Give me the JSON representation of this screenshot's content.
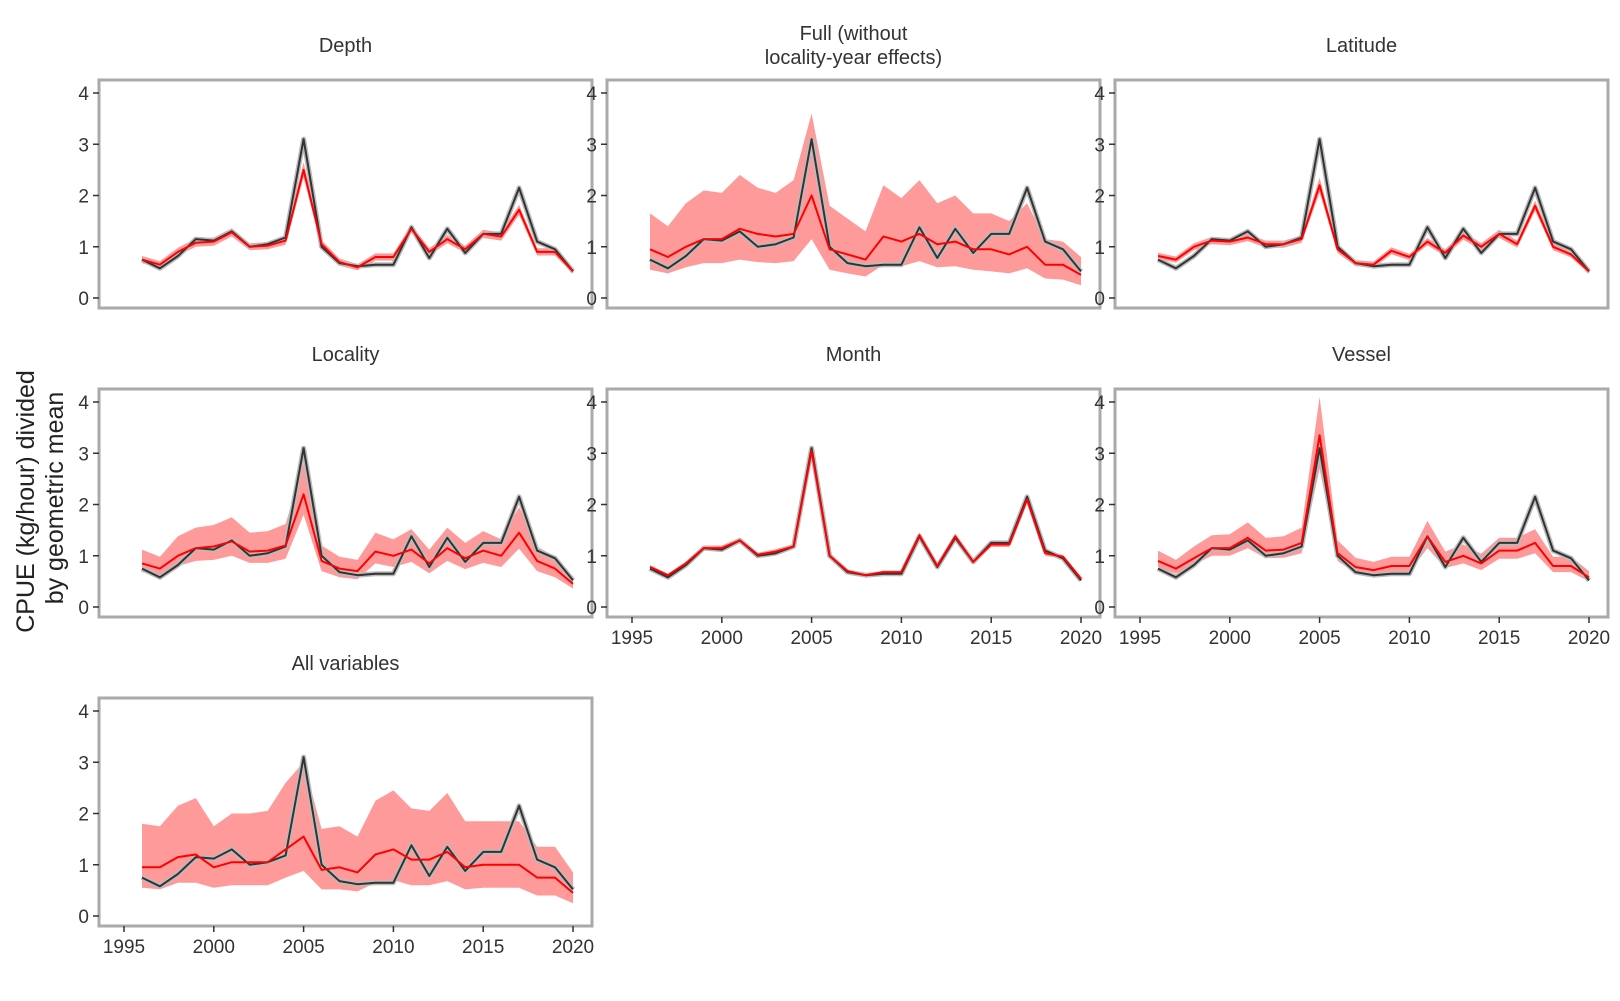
{
  "figure": {
    "ylabel_line1": "CPUE (kg/hour) divided",
    "ylabel_line2": "by geometric mean"
  },
  "colors": {
    "standardized": "#ff0000",
    "band": "#ff9a9a",
    "nominal": "#333333",
    "nominal_band": "#bbbbbb",
    "frame": "#aaaaaa"
  },
  "chart_data": {
    "type": "line",
    "x": [
      1996,
      1997,
      1998,
      1999,
      2000,
      2001,
      2002,
      2003,
      2004,
      2005,
      2006,
      2007,
      2008,
      2009,
      2010,
      2011,
      2012,
      2013,
      2014,
      2015,
      2016,
      2017,
      2018,
      2019,
      2020
    ],
    "xlim": [
      1995,
      2020
    ],
    "ylim": [
      0,
      4
    ],
    "yticks": [
      0,
      1,
      2,
      3,
      4
    ],
    "xticks": [
      1995,
      2000,
      2005,
      2010,
      2015,
      2020
    ],
    "nominal": [
      0.75,
      0.58,
      0.82,
      1.15,
      1.12,
      1.3,
      1.0,
      1.05,
      1.18,
      3.1,
      1.0,
      0.68,
      0.62,
      0.65,
      0.65,
      1.38,
      0.78,
      1.35,
      0.88,
      1.25,
      1.25,
      2.15,
      1.1,
      0.95,
      0.52
    ],
    "panels": [
      {
        "title_line1": "Depth",
        "title_line2": "",
        "xaxis": false,
        "series": [
          0.75,
          0.65,
          0.9,
          1.08,
          1.1,
          1.28,
          1.0,
          1.02,
          1.12,
          2.5,
          1.05,
          0.7,
          0.6,
          0.8,
          0.8,
          1.35,
          0.9,
          1.15,
          0.95,
          1.25,
          1.2,
          1.72,
          0.9,
          0.9,
          0.52
        ],
        "lower": [
          0.68,
          0.58,
          0.83,
          1.0,
          1.02,
          1.2,
          0.93,
          0.95,
          1.04,
          2.35,
          0.97,
          0.63,
          0.54,
          0.73,
          0.73,
          1.27,
          0.83,
          1.07,
          0.88,
          1.17,
          1.12,
          1.62,
          0.83,
          0.83,
          0.47
        ],
        "upper": [
          0.82,
          0.72,
          0.98,
          1.16,
          1.18,
          1.36,
          1.07,
          1.09,
          1.2,
          2.65,
          1.13,
          0.77,
          0.66,
          0.87,
          0.87,
          1.43,
          0.97,
          1.23,
          1.02,
          1.33,
          1.28,
          1.82,
          0.97,
          0.97,
          0.57
        ]
      },
      {
        "title_line1": "Full (without",
        "title_line2": "locality-year effects)",
        "xaxis": false,
        "series": [
          0.95,
          0.8,
          1.0,
          1.15,
          1.15,
          1.35,
          1.25,
          1.2,
          1.25,
          2.0,
          0.95,
          0.85,
          0.75,
          1.2,
          1.1,
          1.25,
          1.05,
          1.1,
          0.95,
          0.95,
          0.85,
          1.0,
          0.65,
          0.65,
          0.45
        ],
        "lower": [
          0.55,
          0.48,
          0.6,
          0.68,
          0.68,
          0.75,
          0.7,
          0.68,
          0.72,
          1.15,
          0.55,
          0.48,
          0.42,
          0.65,
          0.62,
          0.72,
          0.6,
          0.62,
          0.55,
          0.52,
          0.48,
          0.58,
          0.38,
          0.36,
          0.25
        ],
        "upper": [
          1.65,
          1.4,
          1.85,
          2.1,
          2.05,
          2.4,
          2.15,
          2.05,
          2.3,
          3.6,
          1.8,
          1.55,
          1.3,
          2.2,
          1.95,
          2.3,
          1.85,
          2.0,
          1.65,
          1.65,
          1.5,
          1.85,
          1.15,
          1.1,
          0.8
        ]
      },
      {
        "title_line1": "Latitude",
        "title_line2": "",
        "xaxis": false,
        "series": [
          0.82,
          0.75,
          1.0,
          1.12,
          1.1,
          1.18,
          1.05,
          1.05,
          1.15,
          2.2,
          0.95,
          0.68,
          0.65,
          0.92,
          0.8,
          1.1,
          0.88,
          1.22,
          1.0,
          1.25,
          1.05,
          1.8,
          1.0,
          0.85,
          0.52
        ],
        "lower": [
          0.76,
          0.69,
          0.93,
          1.05,
          1.03,
          1.11,
          0.98,
          0.98,
          1.08,
          2.05,
          0.88,
          0.62,
          0.59,
          0.85,
          0.74,
          1.03,
          0.81,
          1.14,
          0.93,
          1.17,
          0.98,
          1.7,
          0.93,
          0.79,
          0.47
        ],
        "upper": [
          0.88,
          0.81,
          1.07,
          1.19,
          1.17,
          1.25,
          1.12,
          1.12,
          1.22,
          2.35,
          1.02,
          0.74,
          0.71,
          0.99,
          0.86,
          1.17,
          0.95,
          1.3,
          1.07,
          1.33,
          1.12,
          1.9,
          1.07,
          0.91,
          0.57
        ]
      },
      {
        "title_line1": "Locality",
        "title_line2": "",
        "xaxis": false,
        "series": [
          0.85,
          0.75,
          1.0,
          1.15,
          1.18,
          1.28,
          1.08,
          1.1,
          1.2,
          2.2,
          0.9,
          0.75,
          0.7,
          1.08,
          1.0,
          1.12,
          0.85,
          1.15,
          0.95,
          1.1,
          1.0,
          1.45,
          0.9,
          0.75,
          0.45
        ],
        "lower": [
          0.68,
          0.6,
          0.8,
          0.9,
          0.92,
          1.0,
          0.86,
          0.86,
          0.94,
          1.8,
          0.7,
          0.58,
          0.54,
          0.85,
          0.78,
          0.88,
          0.66,
          0.9,
          0.74,
          0.86,
          0.78,
          1.14,
          0.7,
          0.58,
          0.36
        ],
        "upper": [
          1.12,
          0.98,
          1.38,
          1.55,
          1.6,
          1.75,
          1.45,
          1.48,
          1.62,
          2.8,
          1.2,
          0.98,
          0.92,
          1.45,
          1.32,
          1.52,
          1.12,
          1.55,
          1.25,
          1.48,
          1.32,
          1.95,
          1.18,
          0.98,
          0.6
        ]
      },
      {
        "title_line1": "Month",
        "title_line2": "",
        "xaxis": true,
        "series": [
          0.78,
          0.62,
          0.85,
          1.15,
          1.15,
          1.3,
          1.02,
          1.08,
          1.18,
          3.05,
          1.0,
          0.7,
          0.62,
          0.68,
          0.68,
          1.4,
          0.8,
          1.38,
          0.88,
          1.22,
          1.22,
          2.1,
          1.05,
          0.98,
          0.55
        ],
        "lower": [
          0.74,
          0.59,
          0.81,
          1.1,
          1.1,
          1.25,
          0.98,
          1.03,
          1.13,
          2.95,
          0.96,
          0.67,
          0.59,
          0.65,
          0.65,
          1.34,
          0.76,
          1.32,
          0.84,
          1.17,
          1.17,
          2.02,
          1.0,
          0.94,
          0.52
        ],
        "upper": [
          0.82,
          0.65,
          0.89,
          1.2,
          1.2,
          1.35,
          1.06,
          1.13,
          1.23,
          3.15,
          1.04,
          0.73,
          0.65,
          0.71,
          0.71,
          1.46,
          0.84,
          1.44,
          0.92,
          1.27,
          1.27,
          2.18,
          1.1,
          1.02,
          0.58
        ]
      },
      {
        "title_line1": "Vessel",
        "title_line2": "",
        "xaxis": true,
        "series": [
          0.9,
          0.75,
          0.95,
          1.15,
          1.15,
          1.35,
          1.1,
          1.12,
          1.25,
          3.35,
          1.05,
          0.78,
          0.72,
          0.8,
          0.8,
          1.38,
          0.88,
          1.0,
          0.85,
          1.1,
          1.1,
          1.25,
          0.8,
          0.8,
          0.58
        ],
        "lower": [
          0.78,
          0.65,
          0.82,
          1.0,
          1.0,
          1.15,
          0.95,
          0.96,
          1.05,
          2.7,
          0.9,
          0.66,
          0.62,
          0.68,
          0.68,
          1.15,
          0.76,
          0.85,
          0.72,
          0.94,
          0.94,
          1.05,
          0.68,
          0.68,
          0.5
        ],
        "upper": [
          1.1,
          0.92,
          1.18,
          1.4,
          1.42,
          1.65,
          1.35,
          1.38,
          1.55,
          4.1,
          1.3,
          0.96,
          0.88,
          0.98,
          0.98,
          1.68,
          1.08,
          1.22,
          1.04,
          1.35,
          1.35,
          1.52,
          0.98,
          0.98,
          0.7
        ]
      },
      {
        "title_line1": "All variables",
        "title_line2": "",
        "xaxis": true,
        "series": [
          0.95,
          0.95,
          1.15,
          1.2,
          0.95,
          1.05,
          1.05,
          1.05,
          1.3,
          1.55,
          0.9,
          0.95,
          0.85,
          1.2,
          1.3,
          1.1,
          1.1,
          1.25,
          0.95,
          1.0,
          1.0,
          1.0,
          0.75,
          0.75,
          0.45
        ],
        "lower": [
          0.55,
          0.52,
          0.65,
          0.65,
          0.55,
          0.6,
          0.6,
          0.6,
          0.75,
          0.88,
          0.52,
          0.52,
          0.48,
          0.65,
          0.7,
          0.6,
          0.6,
          0.68,
          0.52,
          0.55,
          0.55,
          0.55,
          0.4,
          0.4,
          0.25
        ],
        "upper": [
          1.8,
          1.75,
          2.15,
          2.3,
          1.75,
          2.0,
          2.0,
          2.05,
          2.6,
          3.0,
          1.7,
          1.75,
          1.55,
          2.25,
          2.45,
          2.1,
          2.05,
          2.4,
          1.85,
          1.85,
          1.85,
          1.85,
          1.35,
          1.35,
          0.85
        ]
      }
    ]
  }
}
